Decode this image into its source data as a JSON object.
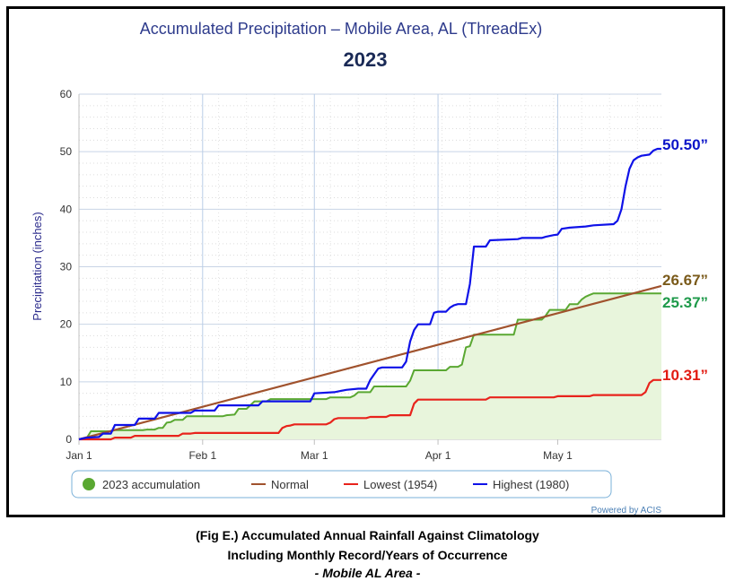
{
  "chart_data": {
    "type": "line",
    "title": "Accumulated Precipitation – Mobile Area, AL (ThreadEx)",
    "subtitle": "2023",
    "ylabel": "Precipitation (inches)",
    "xlabel": "",
    "ylim": [
      0,
      60
    ],
    "xlim": [
      0,
      146
    ],
    "yticks": [
      0,
      10,
      20,
      30,
      40,
      50,
      60
    ],
    "xticks": [
      {
        "day": 0,
        "label": "Jan 1"
      },
      {
        "day": 31,
        "label": "Feb 1"
      },
      {
        "day": 59,
        "label": "Mar 1"
      },
      {
        "day": 90,
        "label": "Apr 1"
      },
      {
        "day": 120,
        "label": "May 1"
      }
    ],
    "grid": true,
    "legend_position": "bottom",
    "credit": "Powered by ACIS",
    "series": [
      {
        "name": "2023 accumulation",
        "color": "#5aa832",
        "fill": "#e8f5dc",
        "legend_marker": "dot",
        "end_label": "25.37”",
        "end_label_color": "#1e9a4a",
        "points": [
          [
            0,
            0
          ],
          [
            2,
            0.3
          ],
          [
            3,
            1.4
          ],
          [
            8,
            1.4
          ],
          [
            9,
            1.6
          ],
          [
            16,
            1.6
          ],
          [
            17,
            1.7
          ],
          [
            19,
            1.7
          ],
          [
            20,
            2.0
          ],
          [
            21,
            2.0
          ],
          [
            22,
            2.9
          ],
          [
            23,
            3.0
          ],
          [
            24,
            3.4
          ],
          [
            26,
            3.4
          ],
          [
            27,
            4.0
          ],
          [
            36,
            4.0
          ],
          [
            37,
            4.2
          ],
          [
            39,
            4.3
          ],
          [
            40,
            5.3
          ],
          [
            42,
            5.3
          ],
          [
            44,
            6.6
          ],
          [
            47,
            6.6
          ],
          [
            48,
            7.0
          ],
          [
            62,
            7.0
          ],
          [
            63,
            7.3
          ],
          [
            68,
            7.3
          ],
          [
            69,
            7.6
          ],
          [
            70,
            8.2
          ],
          [
            73,
            8.2
          ],
          [
            74,
            9.2
          ],
          [
            82,
            9.2
          ],
          [
            83,
            10.2
          ],
          [
            84,
            12.0
          ],
          [
            92,
            12.0
          ],
          [
            93,
            12.6
          ],
          [
            95,
            12.6
          ],
          [
            96,
            13.0
          ],
          [
            97,
            16.0
          ],
          [
            98,
            16.2
          ],
          [
            99,
            18.2
          ],
          [
            109,
            18.2
          ],
          [
            110,
            20.8
          ],
          [
            116,
            20.8
          ],
          [
            117,
            21.5
          ],
          [
            118,
            22.5
          ],
          [
            122,
            22.5
          ],
          [
            123,
            23.5
          ],
          [
            125,
            23.5
          ],
          [
            126,
            24.3
          ],
          [
            127,
            24.8
          ],
          [
            128,
            25.1
          ],
          [
            129,
            25.37
          ],
          [
            146,
            25.37
          ]
        ]
      },
      {
        "name": "Normal",
        "color": "#a0522d",
        "legend_marker": "line",
        "end_label": "26.67”",
        "end_label_color": "#7a5a1a",
        "points": [
          [
            0,
            0
          ],
          [
            146,
            26.67
          ]
        ]
      },
      {
        "name": "Lowest (1954)",
        "color": "#e8231c",
        "legend_marker": "line",
        "end_label": "10.31”",
        "end_label_color": "#e21b12",
        "points": [
          [
            0,
            0
          ],
          [
            8,
            0
          ],
          [
            9,
            0.3
          ],
          [
            13,
            0.3
          ],
          [
            14,
            0.6
          ],
          [
            25,
            0.6
          ],
          [
            26,
            1.0
          ],
          [
            28,
            1.0
          ],
          [
            29,
            1.1
          ],
          [
            50,
            1.1
          ],
          [
            51,
            2.0
          ],
          [
            52,
            2.3
          ],
          [
            53,
            2.4
          ],
          [
            54,
            2.6
          ],
          [
            62,
            2.6
          ],
          [
            63,
            2.9
          ],
          [
            64,
            3.5
          ],
          [
            65,
            3.7
          ],
          [
            72,
            3.7
          ],
          [
            73,
            3.9
          ],
          [
            77,
            3.9
          ],
          [
            78,
            4.2
          ],
          [
            83,
            4.2
          ],
          [
            84,
            6.2
          ],
          [
            85,
            6.9
          ],
          [
            102,
            6.9
          ],
          [
            103,
            7.3
          ],
          [
            119,
            7.3
          ],
          [
            120,
            7.5
          ],
          [
            128,
            7.5
          ],
          [
            129,
            7.7
          ],
          [
            141,
            7.7
          ],
          [
            142,
            8.2
          ],
          [
            143,
            9.8
          ],
          [
            144,
            10.31
          ],
          [
            146,
            10.31
          ]
        ]
      },
      {
        "name": "Highest (1980)",
        "color": "#0f12e8",
        "legend_marker": "line",
        "end_label": "50.50”",
        "end_label_color": "#0b14c8",
        "points": [
          [
            0,
            0
          ],
          [
            2,
            0.3
          ],
          [
            5,
            0.4
          ],
          [
            6,
            1.0
          ],
          [
            8,
            1.0
          ],
          [
            9,
            2.5
          ],
          [
            14,
            2.5
          ],
          [
            15,
            3.6
          ],
          [
            19,
            3.6
          ],
          [
            20,
            4.6
          ],
          [
            28,
            4.6
          ],
          [
            29,
            5.0
          ],
          [
            34,
            5.0
          ],
          [
            35,
            5.9
          ],
          [
            45,
            5.9
          ],
          [
            46,
            6.6
          ],
          [
            58,
            6.6
          ],
          [
            59,
            8.0
          ],
          [
            64,
            8.2
          ],
          [
            67,
            8.6
          ],
          [
            70,
            8.8
          ],
          [
            72,
            8.8
          ],
          [
            73,
            10.3
          ],
          [
            74,
            11.3
          ],
          [
            75,
            12.3
          ],
          [
            76,
            12.5
          ],
          [
            81,
            12.5
          ],
          [
            82,
            13.5
          ],
          [
            83,
            17.0
          ],
          [
            84,
            19.0
          ],
          [
            85,
            20.0
          ],
          [
            88,
            20.0
          ],
          [
            89,
            22.0
          ],
          [
            90,
            22.2
          ],
          [
            92,
            22.2
          ],
          [
            93,
            22.9
          ],
          [
            94,
            23.3
          ],
          [
            95,
            23.5
          ],
          [
            97,
            23.5
          ],
          [
            98,
            27.0
          ],
          [
            99,
            33.5
          ],
          [
            102,
            33.5
          ],
          [
            103,
            34.6
          ],
          [
            110,
            34.8
          ],
          [
            111,
            35.0
          ],
          [
            116,
            35.0
          ],
          [
            117,
            35.2
          ],
          [
            119,
            35.5
          ],
          [
            120,
            35.6
          ],
          [
            121,
            36.6
          ],
          [
            123,
            36.8
          ],
          [
            127,
            37.0
          ],
          [
            129,
            37.2
          ],
          [
            134,
            37.4
          ],
          [
            135,
            38.0
          ],
          [
            136,
            40.0
          ],
          [
            137,
            44.0
          ],
          [
            138,
            47.0
          ],
          [
            139,
            48.5
          ],
          [
            140,
            49.0
          ],
          [
            141,
            49.3
          ],
          [
            143,
            49.5
          ],
          [
            144,
            50.2
          ],
          [
            145,
            50.5
          ],
          [
            146,
            50.5
          ]
        ]
      }
    ]
  },
  "caption": {
    "line1": "(Fig E.) Accumulated Annual Rainfall Against  Climatology",
    "line2": "Including Monthly Record/Years of Occurrence",
    "line3": "- Mobile AL Area -"
  }
}
